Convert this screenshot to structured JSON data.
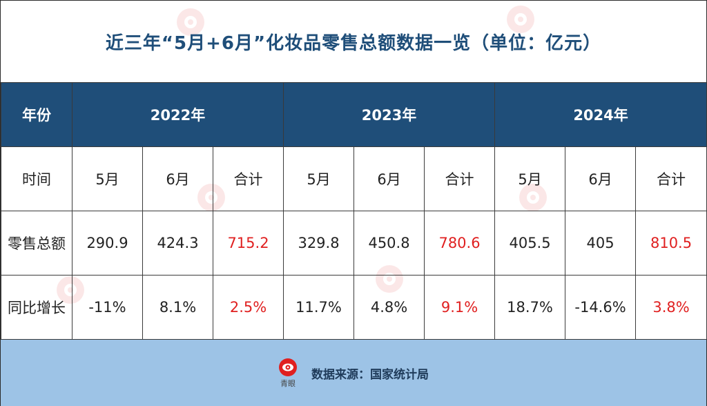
{
  "title": "近三年“5月+6月”化妆品零售总额数据一览（单位：亿元）",
  "header": {
    "year_label": "年份",
    "years": [
      "2022年",
      "2023年",
      "2024年"
    ]
  },
  "rows": {
    "time": {
      "label": "时间",
      "cells": [
        "5月",
        "6月",
        "合计",
        "5月",
        "6月",
        "合计",
        "5月",
        "6月",
        "合计"
      ]
    },
    "sales": {
      "label": "零售总额",
      "cells": [
        "290.9",
        "424.3",
        "715.2",
        "329.8",
        "450.8",
        "780.6",
        "405.5",
        "405",
        "810.5"
      ]
    },
    "yoy": {
      "label": "同比增长",
      "cells": [
        "-11%",
        "8.1%",
        "2.5%",
        "11.7%",
        "4.8%",
        "9.1%",
        "18.7%",
        "-14.6%",
        "3.8%"
      ]
    }
  },
  "footer": {
    "logo_name": "青眼",
    "source": "数据来源：国家统计局"
  },
  "colors": {
    "header_bg": "#1f4e79",
    "title": "#1f4e79",
    "total_red": "#e02020",
    "footer_bg": "#9dc3e6"
  }
}
